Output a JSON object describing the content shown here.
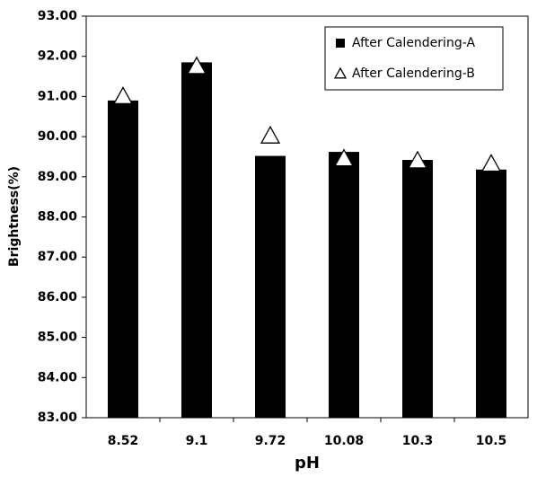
{
  "chart_data": {
    "type": "bar",
    "x_label": "pH",
    "y_label": "Brightness(%)",
    "categories": [
      "8.52",
      "9.1",
      "9.72",
      "10.08",
      "10.3",
      "10.5"
    ],
    "series": [
      {
        "name": "After Calendering-A",
        "kind": "bar",
        "color": "#000000",
        "values": [
          90.9,
          91.85,
          89.52,
          89.62,
          89.42,
          89.18
        ]
      },
      {
        "name": "After Calendering-B",
        "kind": "triangle",
        "color": "#ffffff",
        "values": [
          91.0,
          91.75,
          90.02,
          89.45,
          89.4,
          89.32
        ]
      }
    ],
    "ylim": [
      83,
      93
    ],
    "yticks": [
      {
        "value": 83,
        "label": "83.00"
      },
      {
        "value": 84,
        "label": "84.00"
      },
      {
        "value": 85,
        "label": "85.00"
      },
      {
        "value": 86,
        "label": "86.00"
      },
      {
        "value": 87,
        "label": "87.00"
      },
      {
        "value": 88,
        "label": "88.00"
      },
      {
        "value": 89,
        "label": "89.00"
      },
      {
        "value": 90,
        "label": "90.00"
      },
      {
        "value": 91,
        "label": "91.00"
      },
      {
        "value": 92,
        "label": "92.00"
      },
      {
        "value": 93,
        "label": "93.00"
      }
    ],
    "grid": false,
    "legend": "upper right"
  }
}
